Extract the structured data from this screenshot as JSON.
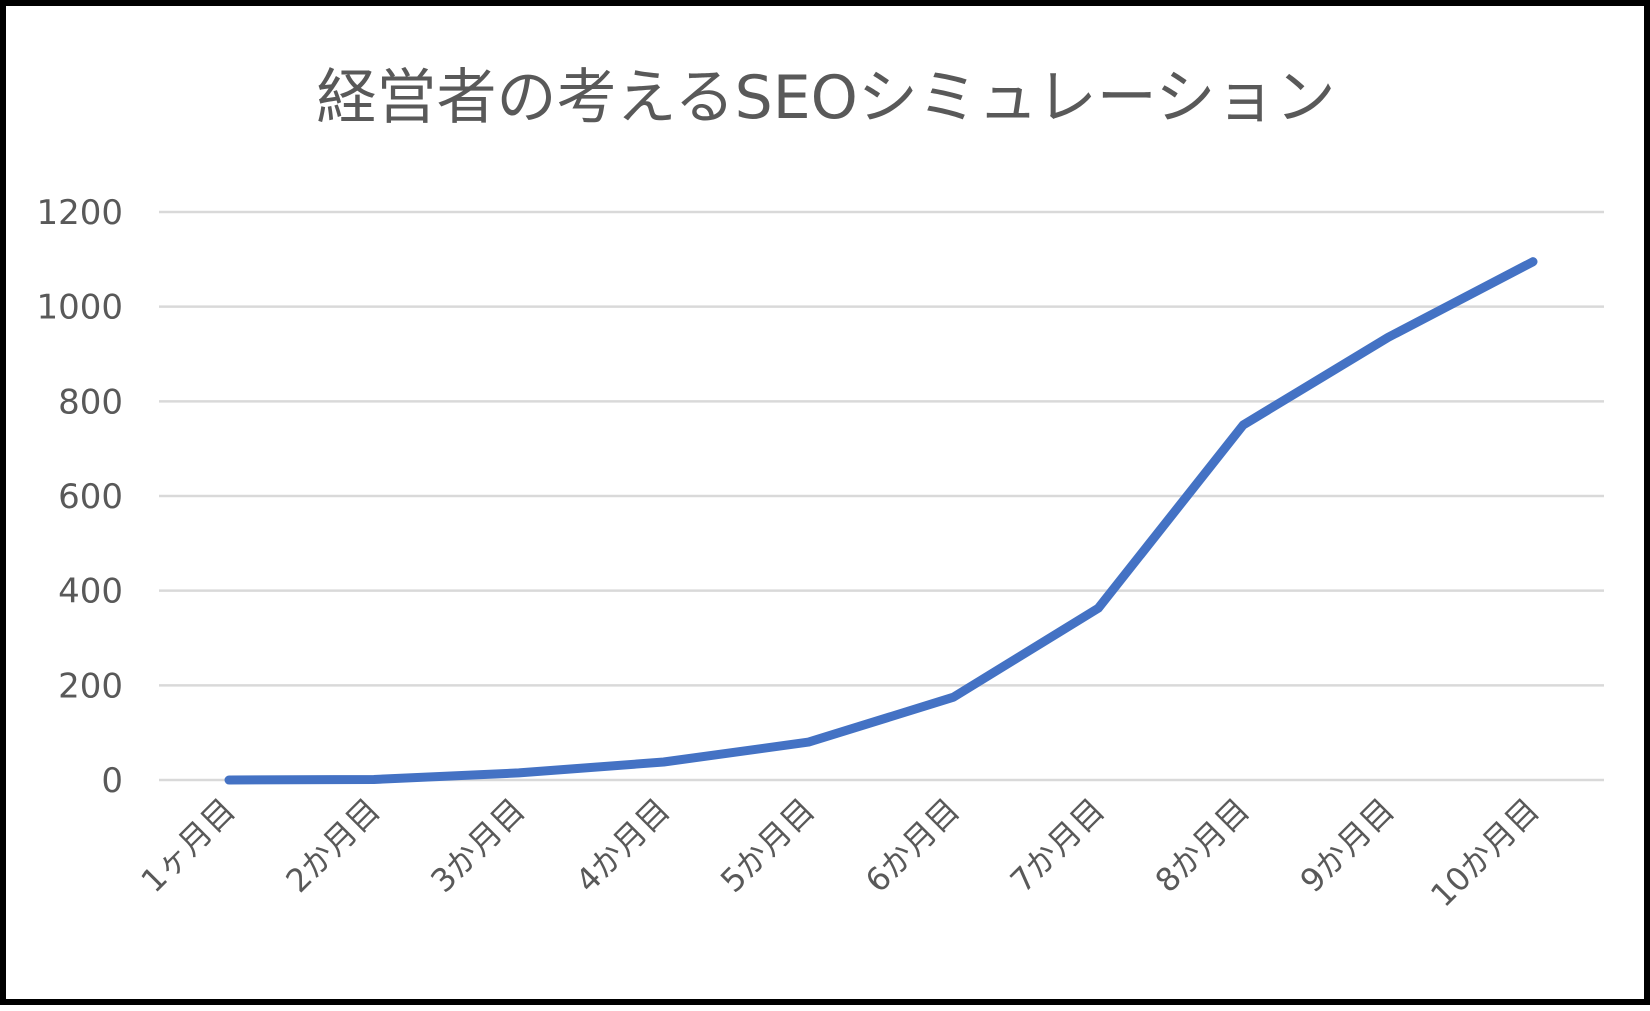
{
  "chart_data": {
    "type": "line",
    "title": "経営者の考えるSEOシミュレーション",
    "xlabel": "",
    "ylabel": "",
    "categories": [
      "1ヶ月目",
      "2か月目",
      "3か月目",
      "4か月目",
      "5か月目",
      "6か月目",
      "7か月目",
      "8か月目",
      "9か月目",
      "10か月目"
    ],
    "series": [
      {
        "values": [
          0,
          1,
          15,
          38,
          80,
          175,
          363,
          750,
          935,
          1095
        ]
      }
    ],
    "ylim": [
      0,
      1200
    ],
    "yticks": [
      "0",
      "200",
      "400",
      "600",
      "800",
      "1000",
      "1200"
    ],
    "grid": true,
    "legend": "none",
    "colors": {
      "line": "#4472c4",
      "grid": "#d9d9d9",
      "text": "#595959",
      "border": "#000000"
    }
  }
}
